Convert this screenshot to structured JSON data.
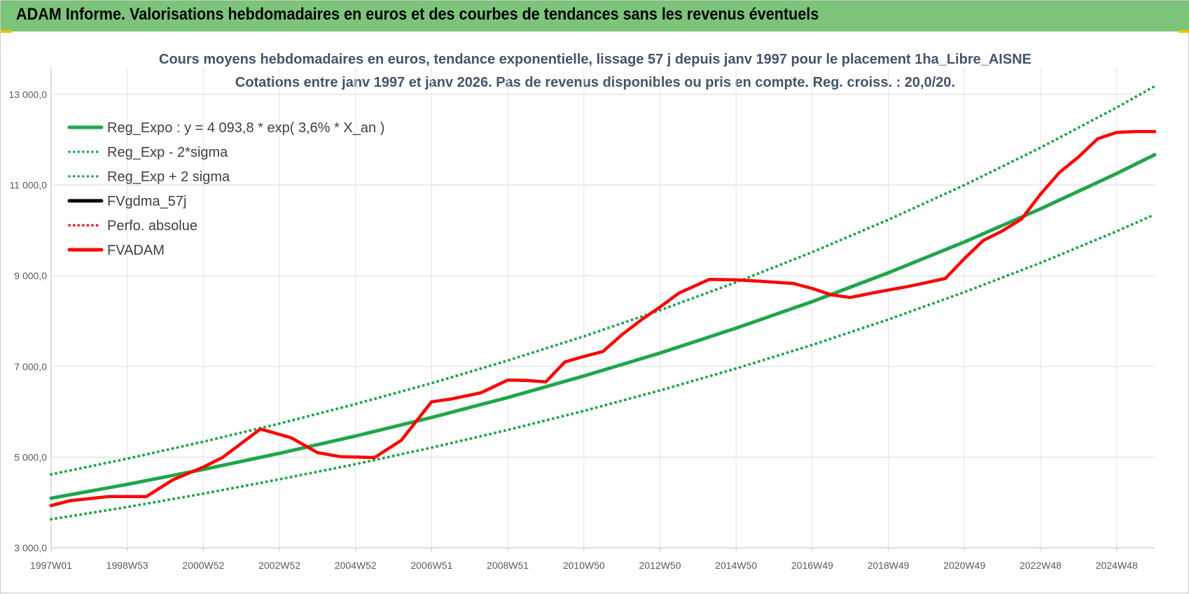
{
  "banner": {
    "title": "ADAM Informe. Valorisations hebdomadaires en euros et des courbes de tendances sans les revenus éventuels"
  },
  "colors": {
    "banner_bg": "#7cc47a",
    "trend_green": "#1fa64a",
    "series_red": "#ff0000",
    "series_black": "#000000",
    "accent_yellow": "#f2c200"
  },
  "chart_data": {
    "type": "line",
    "title_line1": "Cours moyens hebdomadaires en euros, tendance exponentielle, lissage 57 j depuis janv 1997  pour le placement 1ha_Libre_AISNE",
    "title_line2": "Cotations entre janv 1997 et janv 2026. Pas de revenus disponibles ou pris en compte. Reg. croiss. : 20,0/20.",
    "xlabel": "",
    "ylabel": "",
    "ylim": [
      3000,
      13600
    ],
    "yticks": [
      3000,
      5000,
      7000,
      9000,
      11000,
      13000
    ],
    "ytick_labels": [
      "3 000,0",
      "5 000,0",
      "7 000,0",
      "9 000,0",
      "11 000,0",
      "13 000,0"
    ],
    "xlim": [
      1997.0,
      2026.0
    ],
    "x_tick_labels": [
      "1997W01",
      "1998W53",
      "2000W52",
      "2002W52",
      "2004W52",
      "2006W51",
      "2008W51",
      "2010W50",
      "2012W50",
      "2014W50",
      "2016W49",
      "2018W49",
      "2020W49",
      "2022W48",
      "2024W48"
    ],
    "x_tick_positions": [
      1997.0,
      1999.0,
      2001.0,
      2003.0,
      2005.0,
      2007.0,
      2009.0,
      2011.0,
      2013.0,
      2015.0,
      2017.0,
      2019.0,
      2021.0,
      2023.0,
      2025.0
    ],
    "grid": "horizontal",
    "legend_position": "top-left",
    "series": [
      {
        "name": "Reg_Expo : y = 4 093,8 * exp( 3,6% *  X_an )",
        "style": "solid",
        "color": "#1fa64a",
        "x": [
          1997,
          1999,
          2001,
          2003,
          2005,
          2007,
          2009,
          2011,
          2013,
          2015,
          2017,
          2019,
          2021,
          2023,
          2025,
          2026
        ],
        "values": [
          4094,
          4400,
          4730,
          5085,
          5465,
          5875,
          6315,
          6790,
          7295,
          7845,
          8430,
          9065,
          9745,
          10475,
          11255,
          11670
        ]
      },
      {
        "name": "Reg_Exp - 2*sigma",
        "style": "dotted",
        "color": "#1fa64a",
        "x": [
          1997,
          1999,
          2001,
          2003,
          2005,
          2007,
          2009,
          2011,
          2013,
          2015,
          2017,
          2019,
          2021,
          2023,
          2025,
          2026
        ],
        "values": [
          3630,
          3900,
          4195,
          4510,
          4845,
          5210,
          5600,
          6020,
          6470,
          6955,
          7475,
          8035,
          8640,
          9285,
          9980,
          10350
        ]
      },
      {
        "name": "Reg_Exp + 2 sigma",
        "style": "dotted",
        "color": "#1fa64a",
        "x": [
          1997,
          1999,
          2001,
          2003,
          2005,
          2007,
          2009,
          2011,
          2013,
          2015,
          2017,
          2019,
          2021,
          2023,
          2025,
          2026
        ],
        "values": [
          4620,
          4965,
          5340,
          5740,
          6170,
          6630,
          7130,
          7665,
          8240,
          8855,
          9520,
          10235,
          11000,
          11825,
          12710,
          13180
        ]
      },
      {
        "name": "FVgdma_57j",
        "style": "solid",
        "color": "#000000",
        "x": [
          1997.0,
          1997.5,
          1998.5,
          1999.5,
          2000.2,
          2001.0,
          2001.5,
          2002.5,
          2003.3,
          2004.0,
          2004.6,
          2005.5,
          2006.2,
          2007.0,
          2007.5,
          2008.3,
          2009.0,
          2009.5,
          2010.0,
          2010.5,
          2011.0,
          2011.5,
          2012.0,
          2012.5,
          2013.0,
          2013.5,
          2014.3,
          2015.0,
          2015.6,
          2016.5,
          2017.0,
          2017.5,
          2018.0,
          2018.7,
          2019.5,
          2020.0,
          2020.5,
          2021.0,
          2021.5,
          2022.0,
          2022.5,
          2023.0,
          2023.5,
          2024.0,
          2024.5,
          2025.0,
          2025.5,
          2026.0
        ],
        "values": [
          3930,
          4040,
          4130,
          4130,
          4500,
          4780,
          4990,
          5620,
          5430,
          5100,
          5010,
          4990,
          5370,
          6220,
          6280,
          6420,
          6700,
          6690,
          6660,
          7100,
          7220,
          7330,
          7700,
          8020,
          8310,
          8620,
          8920,
          8910,
          8880,
          8830,
          8720,
          8580,
          8520,
          8640,
          8760,
          8850,
          8940,
          9380,
          9780,
          9990,
          10250,
          10800,
          11280,
          11620,
          12020,
          12160,
          12180,
          12180
        ]
      },
      {
        "name": "Perfo. absolue",
        "style": "dotted",
        "color": "#ff0000",
        "x": [],
        "values": []
      },
      {
        "name": "FVADAM",
        "style": "solid",
        "color": "#ff0000",
        "x": [
          1997.0,
          1997.5,
          1998.5,
          1999.5,
          2000.2,
          2001.0,
          2001.5,
          2002.5,
          2003.3,
          2004.0,
          2004.6,
          2005.5,
          2006.2,
          2007.0,
          2007.5,
          2008.3,
          2009.0,
          2009.5,
          2010.0,
          2010.5,
          2011.0,
          2011.5,
          2012.0,
          2012.5,
          2013.0,
          2013.5,
          2014.3,
          2015.0,
          2015.6,
          2016.5,
          2017.0,
          2017.5,
          2018.0,
          2018.7,
          2019.5,
          2020.0,
          2020.5,
          2021.0,
          2021.5,
          2022.0,
          2022.5,
          2023.0,
          2023.5,
          2024.0,
          2024.5,
          2025.0,
          2025.5,
          2026.0
        ],
        "values": [
          3930,
          4040,
          4130,
          4130,
          4500,
          4780,
          4990,
          5620,
          5430,
          5100,
          5010,
          4990,
          5370,
          6220,
          6280,
          6420,
          6700,
          6690,
          6660,
          7100,
          7220,
          7330,
          7700,
          8020,
          8310,
          8620,
          8920,
          8910,
          8880,
          8830,
          8720,
          8580,
          8520,
          8640,
          8760,
          8850,
          8940,
          9380,
          9780,
          9990,
          10250,
          10800,
          11280,
          11620,
          12020,
          12160,
          12180,
          12180
        ]
      }
    ]
  }
}
